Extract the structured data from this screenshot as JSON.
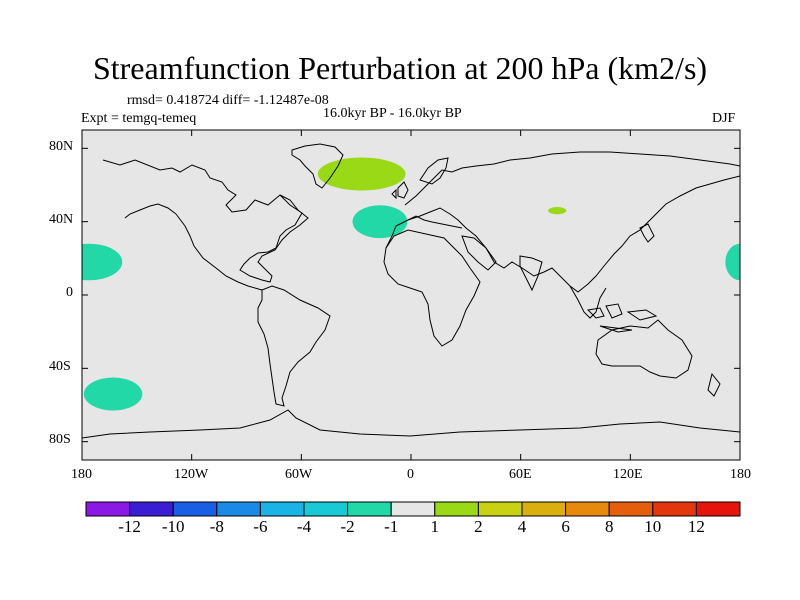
{
  "header": {
    "title": "Streamfunction Perturbation at 200 hPa (km2/s)",
    "stats": "rmsd= 0.418724 diff= -1.12487e-08",
    "experiment": "Expt = temgq-temeq",
    "period": "16.0kyr BP - 16.0kyr BP",
    "season": "DJF"
  },
  "map": {
    "projection": "cylindrical-equidistant",
    "lon_range": [
      -180,
      180
    ],
    "lat_range": [
      -90,
      90
    ],
    "lat_tick_labels": [
      "80N",
      "40N",
      "0",
      "40S",
      "80S"
    ],
    "lat_ticks": [
      80,
      40,
      0,
      -40,
      -80
    ],
    "lon_tick_labels": [
      "180",
      "120W",
      "60W",
      "0",
      "60E",
      "120E",
      "180"
    ],
    "lon_ticks": [
      -180,
      -120,
      -60,
      0,
      60,
      120,
      180
    ],
    "background_color": "#e6e6e6",
    "anomaly_regions": [
      {
        "name": "north-atlantic-greenland",
        "lon": -27,
        "lat": 66,
        "category": "1 to 2",
        "color": "#99d916"
      },
      {
        "name": "mid-atlantic-azores",
        "lon": -17,
        "lat": 40,
        "category": "-2 to -1",
        "color": "#21d8a6"
      },
      {
        "name": "central-asia",
        "lon": 80,
        "lat": 46,
        "category": "1 to 2",
        "color": "#99d916"
      },
      {
        "name": "west-pacific-subtropics",
        "lon": -176,
        "lat": 18,
        "category": "-2 to -1",
        "color": "#21d8a6"
      },
      {
        "name": "east-pacific-edge",
        "lon": 180,
        "lat": 18,
        "category": "-2 to -1",
        "color": "#21d8a6"
      },
      {
        "name": "south-pacific",
        "lon": -163,
        "lat": -54,
        "category": "-2 to -1",
        "color": "#21d8a6"
      }
    ]
  },
  "colorbar": {
    "boundaries": [
      -12,
      -10,
      -8,
      -6,
      -4,
      -2,
      -1,
      1,
      2,
      4,
      6,
      8,
      10,
      12
    ],
    "labels": [
      "-12",
      "-10",
      "-8",
      "-6",
      "-4",
      "-2",
      "-1",
      "1",
      "2",
      "4",
      "6",
      "8",
      "10",
      "12"
    ],
    "colors": [
      "#8a19e6",
      "#3a1ed4",
      "#1a5ee6",
      "#1a8ae6",
      "#19b3e6",
      "#17cad6",
      "#21d8a6",
      "#e6e6e6",
      "#99d916",
      "#c8d112",
      "#d9ae0d",
      "#e6890c",
      "#e45e0d",
      "#e4360c",
      "#e6140c"
    ]
  }
}
